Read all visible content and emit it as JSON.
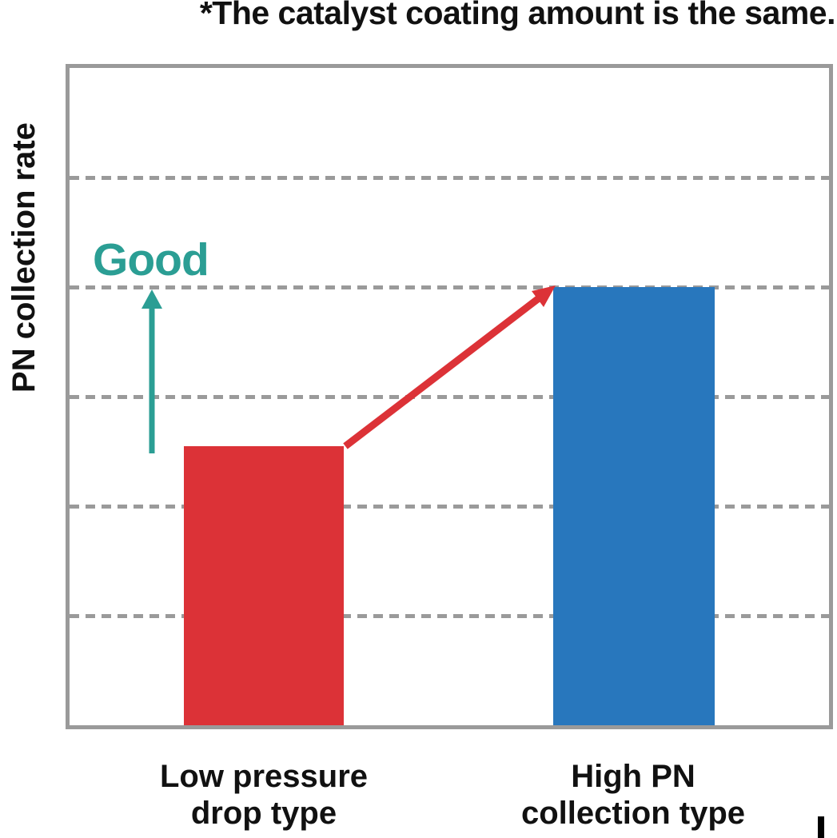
{
  "title": "*The catalyst coating amount is the same.",
  "y_axis_label": "PN collection rate",
  "good_label": "Good",
  "colors": {
    "red": "#dc3237",
    "blue": "#2877bd",
    "teal": "#2b9e94",
    "grid": "#9a9a9a",
    "text": "#111111"
  },
  "chart_data": {
    "type": "bar",
    "title": "*The catalyst coating amount is the same.",
    "xlabel": "",
    "ylabel": "PN collection rate",
    "categories": [
      "Low pressure\ndrop type",
      "High PN\ncollection type"
    ],
    "values": [
      2.55,
      4
    ],
    "series_colors": [
      "#dc3237",
      "#2877bd"
    ],
    "ylim": [
      0,
      6
    ],
    "grid": true,
    "gridline_style": "horizontal dashed gray, every 1 unit (unlabeled axis)",
    "legend": false,
    "annotations": [
      {
        "text": "Good",
        "color": "#2b9e94",
        "shape": "vertical up arrow below label, left of first bar"
      },
      {
        "text": "",
        "color": "#dc3237",
        "shape": "diagonal arrow from top of first bar to top of second bar"
      }
    ]
  }
}
